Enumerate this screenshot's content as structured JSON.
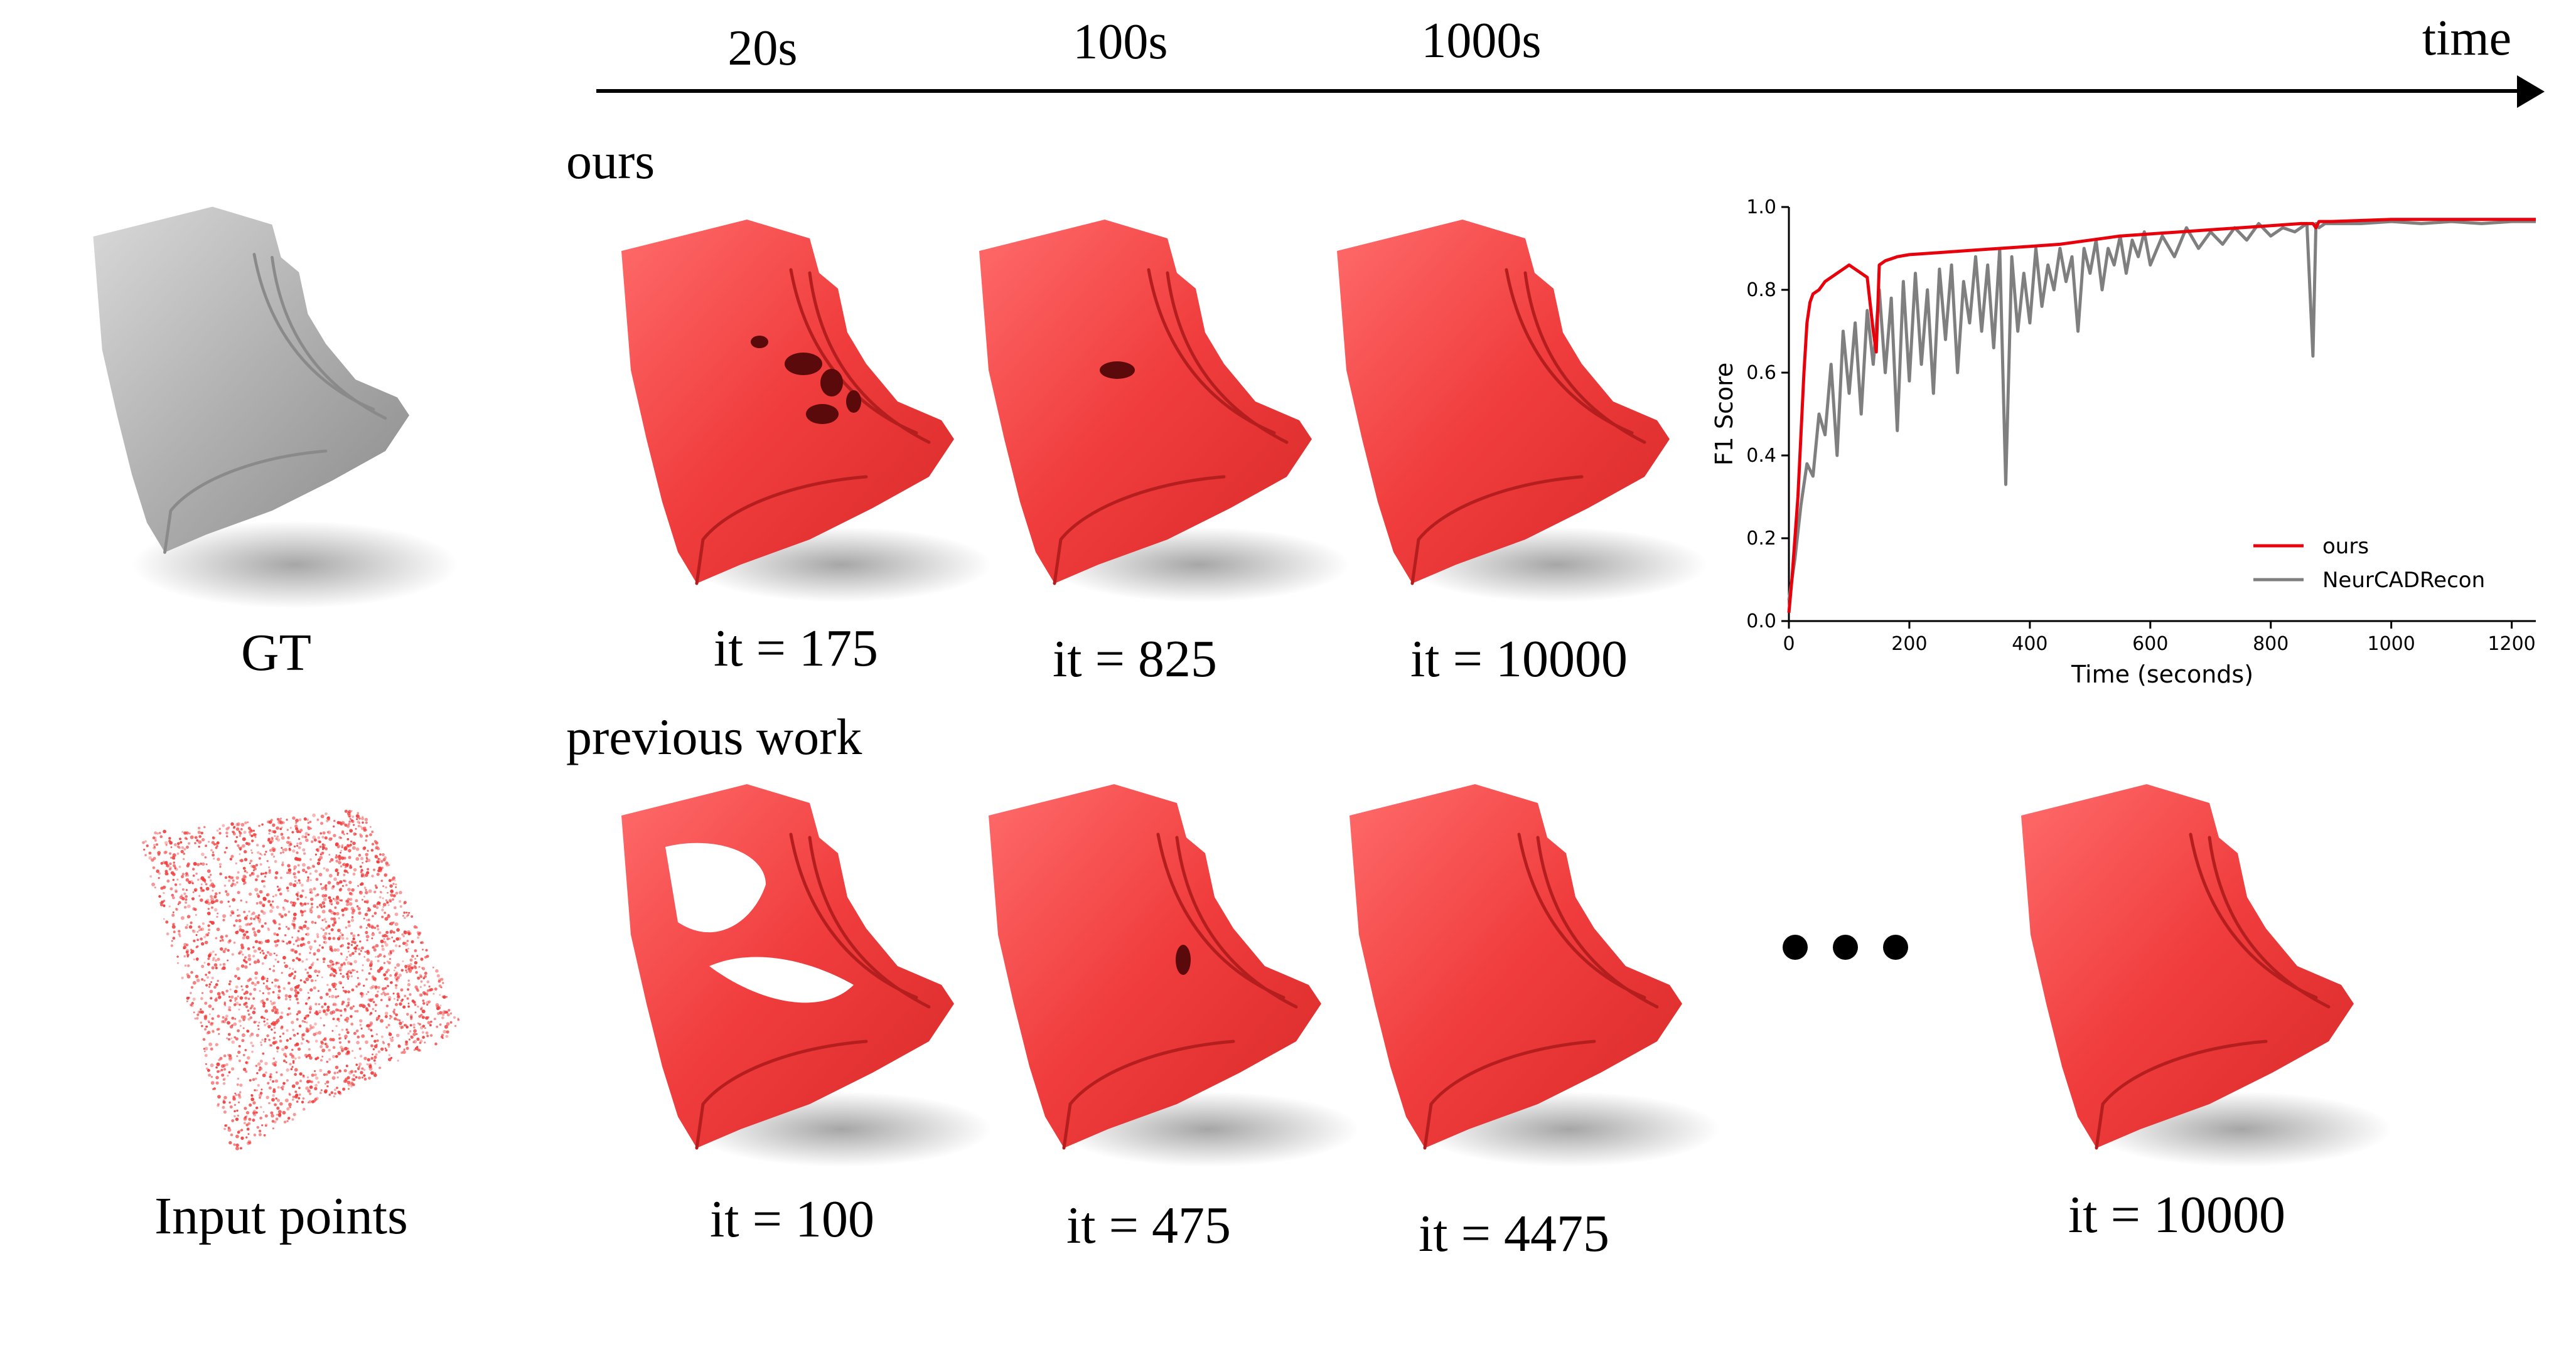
{
  "timeline": {
    "ticks": [
      "20s",
      "100s",
      "1000s"
    ],
    "end_label": "time"
  },
  "rows": {
    "ours_label": "ours",
    "previous_label": "previous work"
  },
  "left": {
    "gt_label": "GT",
    "input_label": "Input points"
  },
  "ours_captions": [
    "it = 175",
    "it = 825",
    "it = 10000"
  ],
  "previous_captions": [
    "it = 100",
    "it = 475",
    "it = 4475",
    "it = 10000"
  ],
  "colors": {
    "ours_mesh": "#f03c3c",
    "gt_mesh": "#b8b8b8",
    "ours_line": "#e8000b",
    "neur_line": "#7f7f7f"
  },
  "chart_data": {
    "type": "line",
    "xlabel": "Time (seconds)",
    "ylabel": "F1 Score",
    "xlim": [
      0,
      1240
    ],
    "ylim": [
      0.0,
      1.0
    ],
    "xticks": [
      0,
      200,
      400,
      600,
      800,
      1000,
      1200
    ],
    "yticks": [
      0.0,
      0.2,
      0.4,
      0.6,
      0.8,
      1.0
    ],
    "ytick_labels": [
      "0.0",
      "0.2",
      "0.4",
      "0.6",
      "0.8",
      "1.0"
    ],
    "legend_position": "bottom-right",
    "series": [
      {
        "name": "ours",
        "color": "#e8000b",
        "x": [
          0,
          5,
          10,
          15,
          20,
          25,
          30,
          35,
          40,
          50,
          60,
          70,
          80,
          90,
          100,
          110,
          120,
          130,
          140,
          145,
          150,
          160,
          180,
          200,
          250,
          300,
          350,
          400,
          450,
          500,
          550,
          600,
          650,
          700,
          750,
          800,
          850,
          870,
          875,
          880,
          900,
          1000,
          1100,
          1240
        ],
        "y": [
          0.02,
          0.1,
          0.2,
          0.3,
          0.45,
          0.6,
          0.72,
          0.77,
          0.79,
          0.8,
          0.82,
          0.83,
          0.84,
          0.85,
          0.86,
          0.85,
          0.84,
          0.83,
          0.7,
          0.65,
          0.86,
          0.87,
          0.88,
          0.885,
          0.89,
          0.895,
          0.9,
          0.905,
          0.91,
          0.92,
          0.93,
          0.935,
          0.94,
          0.945,
          0.95,
          0.955,
          0.96,
          0.96,
          0.95,
          0.965,
          0.965,
          0.97,
          0.97,
          0.97
        ]
      },
      {
        "name": "NeurCADRecon",
        "color": "#7f7f7f",
        "x": [
          0,
          10,
          20,
          30,
          40,
          50,
          60,
          70,
          80,
          90,
          100,
          110,
          120,
          130,
          140,
          150,
          160,
          170,
          180,
          190,
          200,
          210,
          220,
          230,
          240,
          250,
          260,
          270,
          280,
          290,
          300,
          310,
          320,
          330,
          340,
          350,
          360,
          370,
          380,
          390,
          400,
          410,
          420,
          430,
          440,
          450,
          460,
          470,
          480,
          490,
          500,
          510,
          520,
          530,
          540,
          550,
          560,
          570,
          580,
          590,
          600,
          620,
          640,
          660,
          680,
          700,
          720,
          740,
          760,
          780,
          800,
          820,
          840,
          860,
          870,
          875,
          880,
          890,
          900,
          950,
          1000,
          1050,
          1100,
          1150,
          1200,
          1240
        ],
        "y": [
          0.05,
          0.15,
          0.28,
          0.38,
          0.35,
          0.5,
          0.45,
          0.62,
          0.4,
          0.7,
          0.55,
          0.72,
          0.5,
          0.75,
          0.62,
          0.8,
          0.6,
          0.78,
          0.46,
          0.82,
          0.58,
          0.84,
          0.62,
          0.8,
          0.55,
          0.85,
          0.68,
          0.86,
          0.6,
          0.82,
          0.72,
          0.88,
          0.7,
          0.86,
          0.66,
          0.9,
          0.33,
          0.88,
          0.7,
          0.84,
          0.72,
          0.9,
          0.76,
          0.86,
          0.8,
          0.9,
          0.82,
          0.88,
          0.7,
          0.9,
          0.84,
          0.92,
          0.8,
          0.9,
          0.86,
          0.93,
          0.84,
          0.92,
          0.88,
          0.94,
          0.86,
          0.93,
          0.88,
          0.95,
          0.9,
          0.94,
          0.91,
          0.95,
          0.92,
          0.96,
          0.93,
          0.95,
          0.94,
          0.96,
          0.64,
          0.96,
          0.95,
          0.96,
          0.96,
          0.96,
          0.965,
          0.96,
          0.965,
          0.96,
          0.965,
          0.965
        ]
      }
    ]
  }
}
